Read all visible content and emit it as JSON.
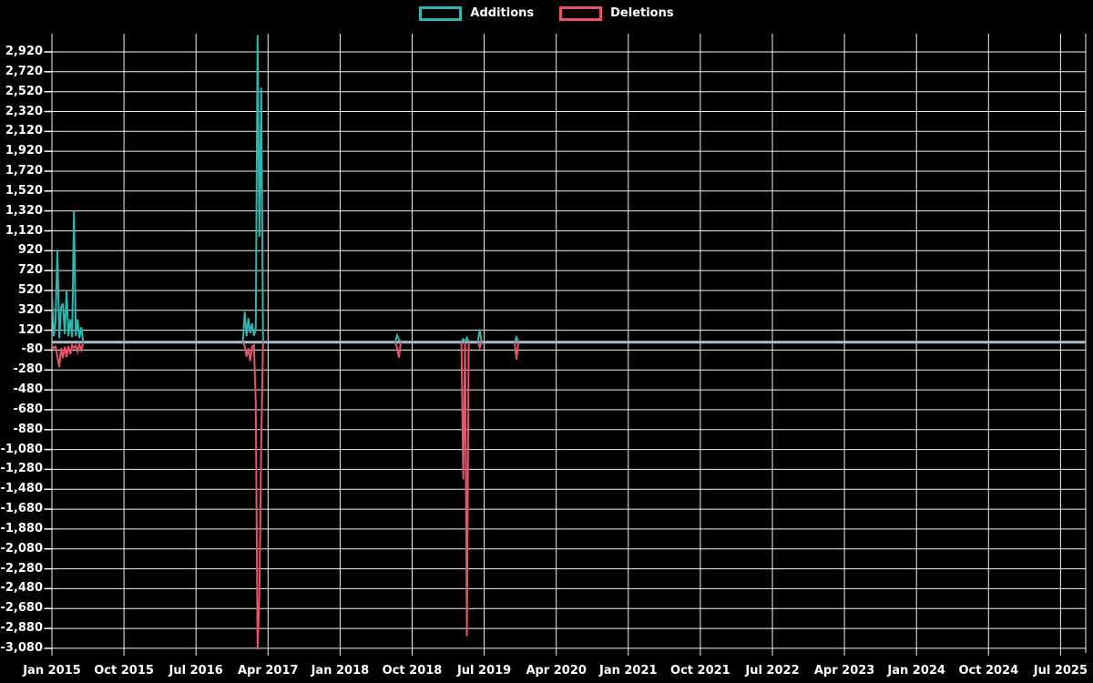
{
  "page": {
    "background": "#000000"
  },
  "chart_data": {
    "type": "line",
    "title": "",
    "description": "Weekly code additions and deletions, Jan 2015 - Jul 2025; flat at zero except spike clusters; extreme Feb-Mar 2017 values clipped by plot area",
    "legend_position": "top-center",
    "grid": "on",
    "colors": {
      "background": "#000000",
      "grid_line": "#f2f2f2",
      "zero_line": "#a7bdca",
      "additions": "#2eb5b0",
      "deletions": "#e8526a",
      "text": "#ffffff"
    },
    "legend": [
      {
        "label": "Additions",
        "color": "#2eb5b0"
      },
      {
        "label": "Deletions",
        "color": "#e8526a"
      }
    ],
    "x_axis": {
      "start_week": "2015-01-04",
      "end_week": "2025-10-19",
      "tick_labels": [
        "Jan 2015",
        "Oct 2015",
        "Jul 2016",
        "Apr 2017",
        "Jan 2018",
        "Oct 2018",
        "Jul 2019",
        "Apr 2020",
        "Jan 2021",
        "Oct 2021",
        "Jul 2022",
        "Apr 2023",
        "Jan 2024",
        "Oct 2024",
        "Jul 2025"
      ]
    },
    "y_axis": {
      "max_label_value": 2920,
      "min_label_value": -3080,
      "step": 200,
      "tick_labels": [
        "2,920",
        "2,720",
        "2,520",
        "2,320",
        "2,120",
        "1,920",
        "1,720",
        "1,520",
        "1,320",
        "1,120",
        "920",
        "720",
        "520",
        "320",
        "120",
        "-80",
        "-280",
        "-480",
        "-680",
        "-880",
        "-1,080",
        "-1,280",
        "-1,480",
        "-1,680",
        "-1,880",
        "-2,080",
        "-2,280",
        "-2,480",
        "-2,680",
        "-2,880",
        "-3,080"
      ]
    },
    "series_names": [
      "Additions",
      "Deletions"
    ],
    "baseline_value": 0,
    "events": [
      {
        "week": "2015-01-04",
        "additions": 490,
        "deletions": -35
      },
      {
        "week": "2015-01-11",
        "additions": 60,
        "deletions": -60
      },
      {
        "week": "2015-01-18",
        "additions": 210,
        "deletions": -45
      },
      {
        "week": "2015-01-25",
        "additions": 930,
        "deletions": -140
      },
      {
        "week": "2015-02-01",
        "additions": 40,
        "deletions": -250
      },
      {
        "week": "2015-02-08",
        "additions": 350,
        "deletions": -60
      },
      {
        "week": "2015-02-15",
        "additions": 390,
        "deletions": -160
      },
      {
        "week": "2015-02-22",
        "additions": 80,
        "deletions": -45
      },
      {
        "week": "2015-03-01",
        "additions": 520,
        "deletions": -150
      },
      {
        "week": "2015-03-08",
        "additions": 60,
        "deletions": -40
      },
      {
        "week": "2015-03-15",
        "additions": 230,
        "deletions": -120
      },
      {
        "week": "2015-03-22",
        "additions": 50,
        "deletions": -30
      },
      {
        "week": "2015-03-29",
        "additions": 1320,
        "deletions": -60
      },
      {
        "week": "2015-04-05",
        "additions": 60,
        "deletions": -35
      },
      {
        "week": "2015-04-12",
        "additions": 230,
        "deletions": -95
      },
      {
        "week": "2015-04-19",
        "additions": 40,
        "deletions": -25
      },
      {
        "week": "2015-04-26",
        "additions": 150,
        "deletions": -80
      },
      {
        "week": "2017-01-08",
        "additions": 305,
        "deletions": -40
      },
      {
        "week": "2017-01-15",
        "additions": 60,
        "deletions": -145
      },
      {
        "week": "2017-01-22",
        "additions": 240,
        "deletions": -60
      },
      {
        "week": "2017-01-29",
        "additions": 90,
        "deletions": -190
      },
      {
        "week": "2017-02-05",
        "additions": 190,
        "deletions": -45
      },
      {
        "week": "2017-02-12",
        "additions": 65,
        "deletions": -30
      },
      {
        "week": "2017-02-19",
        "additions": 130,
        "deletions": -620
      },
      {
        "week": "2017-02-26",
        "additions": 3090,
        "deletions": -3090
      },
      {
        "week": "2017-03-05",
        "additions": 1060,
        "deletions": -2530
      },
      {
        "week": "2017-03-12",
        "additions": 2560,
        "deletions": -1025
      },
      {
        "week": "2018-08-12",
        "additions": 70,
        "deletions": -60
      },
      {
        "week": "2018-08-19",
        "additions": 25,
        "deletions": -155
      },
      {
        "week": "2019-04-21",
        "additions": 30,
        "deletions": -1380
      },
      {
        "week": "2019-05-05",
        "additions": 45,
        "deletions": -2960
      },
      {
        "week": "2019-06-23",
        "additions": 130,
        "deletions": -55
      },
      {
        "week": "2019-11-10",
        "additions": 50,
        "deletions": -175
      }
    ]
  }
}
